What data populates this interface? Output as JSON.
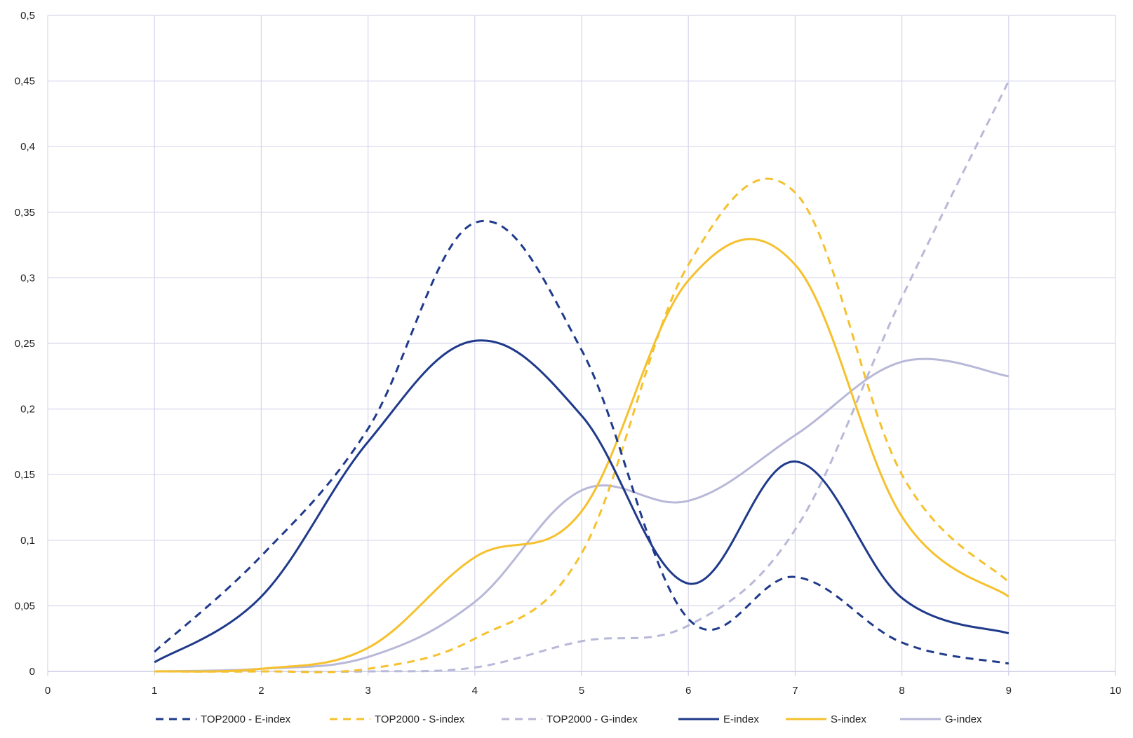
{
  "chart_data": {
    "type": "line",
    "title": "",
    "xlabel": "",
    "ylabel": "",
    "xlim": [
      0,
      10
    ],
    "ylim": [
      0,
      0.5
    ],
    "x_ticks": [
      0,
      1,
      2,
      3,
      4,
      5,
      6,
      7,
      8,
      9,
      10
    ],
    "x_tick_labels": [
      "0",
      "1",
      "2",
      "3",
      "4",
      "5",
      "6",
      "7",
      "8",
      "9",
      "10"
    ],
    "y_ticks": [
      0,
      0.05,
      0.1,
      0.15,
      0.2,
      0.25,
      0.3,
      0.35,
      0.4,
      0.45,
      0.5
    ],
    "y_tick_labels": [
      "0",
      "0,05",
      "0,1",
      "0,15",
      "0,2",
      "0,25",
      "0,3",
      "0,35",
      "0,4",
      "0,45",
      "0,5"
    ],
    "grid": true,
    "legend_position": "bottom",
    "x": [
      1,
      2,
      3,
      4,
      5,
      6,
      7,
      8,
      9
    ],
    "series": [
      {
        "name": "TOP2000 - E-index",
        "color": "#1f3a8a",
        "dash": true,
        "values": [
          0.015,
          0.088,
          0.185,
          0.342,
          0.245,
          0.04,
          0.072,
          0.022,
          0.006
        ]
      },
      {
        "name": "TOP2000 - S-index",
        "color": "#f5c12e",
        "dash": true,
        "values": [
          0.0,
          0.0,
          0.002,
          0.025,
          0.09,
          0.31,
          0.365,
          0.15,
          0.068
        ]
      },
      {
        "name": "TOP2000 - G-index",
        "color": "#b8b8d8",
        "dash": true,
        "values": [
          0.0,
          0.0,
          0.0,
          0.003,
          0.023,
          0.035,
          0.108,
          0.285,
          0.45
        ]
      },
      {
        "name": "E-index",
        "color": "#1f3a8a",
        "dash": false,
        "values": [
          0.007,
          0.057,
          0.175,
          0.252,
          0.195,
          0.067,
          0.16,
          0.056,
          0.029
        ]
      },
      {
        "name": "S-index",
        "color": "#f5c12e",
        "dash": false,
        "values": [
          0.0,
          0.002,
          0.018,
          0.087,
          0.122,
          0.298,
          0.31,
          0.118,
          0.057
        ]
      },
      {
        "name": "G-index",
        "color": "#b8b8d8",
        "dash": false,
        "values": [
          0.0,
          0.002,
          0.011,
          0.053,
          0.138,
          0.13,
          0.18,
          0.236,
          0.225
        ]
      }
    ]
  }
}
